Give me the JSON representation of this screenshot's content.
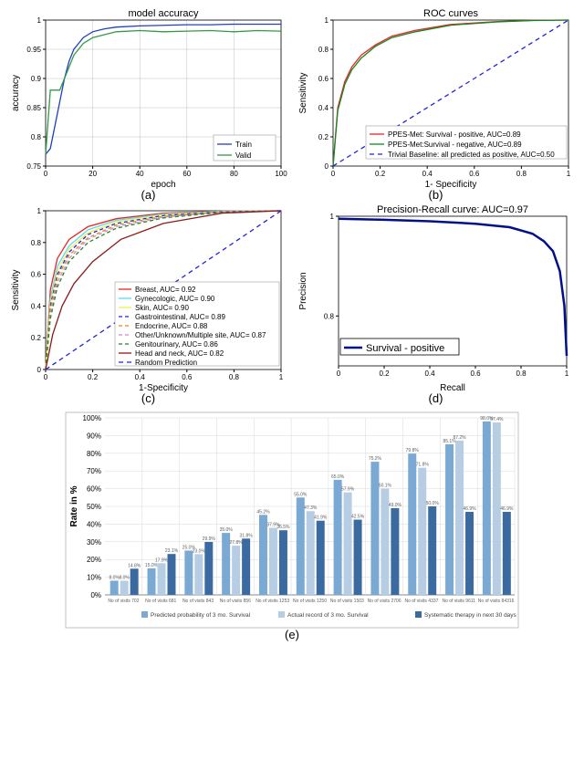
{
  "panel_a": {
    "title": "model accuracy",
    "xlabel": "epoch",
    "ylabel": "accuracy",
    "xlim": [
      0,
      100
    ],
    "xticks": [
      0,
      20,
      40,
      60,
      80,
      100
    ],
    "ylim": [
      0.75,
      1.0
    ],
    "yticks": [
      0.75,
      0.8,
      0.85,
      0.9,
      0.95,
      1.0
    ],
    "grid_color": "#c0c0c0",
    "series": [
      {
        "name": "Train",
        "color": "#1f3fbf",
        "x": [
          0,
          2,
          4,
          6,
          8,
          10,
          12,
          14,
          16,
          18,
          20,
          25,
          30,
          40,
          50,
          60,
          70,
          80,
          90,
          100
        ],
        "y": [
          0.77,
          0.78,
          0.82,
          0.86,
          0.9,
          0.93,
          0.95,
          0.96,
          0.97,
          0.975,
          0.98,
          0.985,
          0.988,
          0.99,
          0.991,
          0.992,
          0.992,
          0.993,
          0.993,
          0.993
        ]
      },
      {
        "name": "Valid",
        "color": "#339944",
        "x": [
          0,
          2,
          4,
          6,
          8,
          10,
          12,
          14,
          16,
          18,
          20,
          25,
          30,
          40,
          50,
          60,
          70,
          80,
          90,
          100
        ],
        "y": [
          0.77,
          0.88,
          0.88,
          0.88,
          0.9,
          0.92,
          0.94,
          0.95,
          0.96,
          0.965,
          0.97,
          0.975,
          0.98,
          0.982,
          0.98,
          0.981,
          0.982,
          0.98,
          0.982,
          0.981
        ]
      }
    ],
    "legend": [
      "Train",
      "Valid"
    ]
  },
  "panel_b": {
    "title": "ROC curves",
    "xlabel": "1- Specificity",
    "ylabel": "Sensitivity",
    "xlim": [
      0,
      1
    ],
    "xticks": [
      0.0,
      0.2,
      0.4,
      0.6,
      0.8,
      1.0
    ],
    "ylim": [
      0,
      1
    ],
    "yticks": [
      0.0,
      0.2,
      0.4,
      0.6,
      0.8,
      1.0
    ],
    "series": [
      {
        "name": "PPES-Met: Survival - positive, AUC=0.89",
        "color": "#ee2222",
        "dash": "",
        "x": [
          0,
          0.02,
          0.05,
          0.08,
          0.12,
          0.18,
          0.25,
          0.35,
          0.5,
          0.7,
          0.85,
          1.0
        ],
        "y": [
          0,
          0.4,
          0.58,
          0.68,
          0.76,
          0.83,
          0.89,
          0.93,
          0.97,
          0.99,
          0.998,
          1.0
        ]
      },
      {
        "name": "PPES-Met:Survival - negative, AUC=0.89",
        "color": "#118822",
        "dash": "",
        "x": [
          0,
          0.02,
          0.05,
          0.08,
          0.12,
          0.18,
          0.25,
          0.35,
          0.5,
          0.7,
          0.85,
          1.0
        ],
        "y": [
          0,
          0.38,
          0.56,
          0.66,
          0.74,
          0.82,
          0.88,
          0.92,
          0.965,
          0.988,
          0.997,
          1.0
        ]
      },
      {
        "name": "Trivial Baseline: all predicted as positive, AUC=0.50",
        "color": "#2222dd",
        "dash": "5,4",
        "x": [
          0,
          1
        ],
        "y": [
          0,
          1
        ]
      }
    ]
  },
  "panel_c": {
    "xlabel": "1-Specificity",
    "ylabel": "Sensitivity",
    "xlim": [
      0,
      1
    ],
    "xticks": [
      0.0,
      0.2,
      0.4,
      0.6,
      0.8,
      1.0
    ],
    "ylim": [
      0,
      1
    ],
    "yticks": [
      0.0,
      0.2,
      0.4,
      0.6,
      0.8,
      1.0
    ],
    "baseline": {
      "color": "#2222dd",
      "dash": "5,4"
    },
    "series": [
      {
        "name": "Breast, AUC= 0.92",
        "color": "#ee2222",
        "dash": "",
        "x": [
          0,
          0.02,
          0.05,
          0.1,
          0.18,
          0.3,
          0.5,
          0.75,
          1.0
        ],
        "y": [
          0,
          0.5,
          0.7,
          0.82,
          0.9,
          0.95,
          0.985,
          0.998,
          1.0
        ]
      },
      {
        "name": "Gynecologic, AUC= 0.90",
        "color": "#55ddee",
        "dash": "",
        "x": [
          0,
          0.02,
          0.05,
          0.1,
          0.18,
          0.3,
          0.5,
          0.75,
          1.0
        ],
        "y": [
          0,
          0.45,
          0.65,
          0.78,
          0.88,
          0.94,
          0.98,
          0.997,
          1.0
        ]
      },
      {
        "name": "Skin, AUC= 0.90",
        "color": "#eeee55",
        "dash": "",
        "x": [
          0,
          0.02,
          0.05,
          0.1,
          0.18,
          0.3,
          0.5,
          0.75,
          1.0
        ],
        "y": [
          0,
          0.42,
          0.62,
          0.76,
          0.86,
          0.93,
          0.975,
          0.995,
          1.0
        ]
      },
      {
        "name": "Gastrointestinal, AUC= 0.89",
        "color": "#2222dd",
        "dash": "4,3",
        "x": [
          0,
          0.02,
          0.05,
          0.1,
          0.18,
          0.3,
          0.5,
          0.75,
          1.0
        ],
        "y": [
          0,
          0.4,
          0.6,
          0.74,
          0.85,
          0.92,
          0.97,
          0.994,
          1.0
        ]
      },
      {
        "name": "Endocrine, AUC= 0.88",
        "color": "#dd8822",
        "dash": "4,3",
        "x": [
          0,
          0.02,
          0.05,
          0.1,
          0.18,
          0.3,
          0.5,
          0.75,
          1.0
        ],
        "y": [
          0,
          0.38,
          0.58,
          0.72,
          0.83,
          0.91,
          0.965,
          0.993,
          1.0
        ]
      },
      {
        "name": "Other/Unknown/Multiple site, AUC= 0.87",
        "color": "#cc88cc",
        "dash": "4,3",
        "x": [
          0,
          0.02,
          0.05,
          0.1,
          0.18,
          0.3,
          0.5,
          0.75,
          1.0
        ],
        "y": [
          0,
          0.35,
          0.55,
          0.7,
          0.82,
          0.9,
          0.96,
          0.992,
          1.0
        ]
      },
      {
        "name": "Genitourinary, AUC= 0.86",
        "color": "#228822",
        "dash": "4,3",
        "x": [
          0,
          0.02,
          0.05,
          0.1,
          0.18,
          0.3,
          0.5,
          0.75,
          1.0
        ],
        "y": [
          0,
          0.32,
          0.52,
          0.68,
          0.8,
          0.89,
          0.955,
          0.99,
          1.0
        ]
      },
      {
        "name": "Head and neck, AUC= 0.82",
        "color": "#8b1a1a",
        "dash": "",
        "x": [
          0,
          0.03,
          0.07,
          0.12,
          0.2,
          0.32,
          0.5,
          0.75,
          1.0
        ],
        "y": [
          0,
          0.22,
          0.4,
          0.54,
          0.68,
          0.82,
          0.92,
          0.985,
          1.0
        ]
      },
      {
        "name": "Random Prediction",
        "color": "#2222dd",
        "dash": "5,4",
        "x": [
          0,
          1
        ],
        "y": [
          0,
          1
        ]
      }
    ]
  },
  "panel_d": {
    "title": "Precision-Recall curve: AUC=0.97",
    "xlabel": "Recall",
    "ylabel": "Precision",
    "xlim": [
      0,
      1
    ],
    "xticks": [
      0.0,
      0.2,
      0.4,
      0.6,
      0.8,
      1.0
    ],
    "ylim": [
      0.7,
      1.0
    ],
    "yticks": [
      0.8,
      1.0
    ],
    "series": [
      {
        "name": "Survival - positive",
        "color": "#001088",
        "width": 2.5,
        "x": [
          0,
          0.2,
          0.4,
          0.6,
          0.75,
          0.85,
          0.9,
          0.94,
          0.97,
          0.99,
          1.0
        ],
        "y": [
          0.995,
          0.993,
          0.99,
          0.985,
          0.978,
          0.965,
          0.95,
          0.93,
          0.89,
          0.82,
          0.72
        ]
      }
    ]
  },
  "panel_e": {
    "ylabel": "Rate in %",
    "ylim": [
      0,
      100
    ],
    "yticks": [
      0,
      10,
      20,
      30,
      40,
      50,
      60,
      70,
      80,
      90,
      100
    ],
    "grid_color": "#d8d8d8",
    "bar_colors": [
      "#7aa9d4",
      "#b7cde4",
      "#3b6aa0"
    ],
    "legend": [
      "Predicted probability of 3 mo. Survival",
      "Actual record of 3 mo. Survival",
      "Systematic therapy in next 30 days"
    ],
    "groups": [
      {
        "label": "No of visits 702",
        "vals": [
          8.0,
          8.0,
          14.8
        ]
      },
      {
        "label": "No of visits 681",
        "vals": [
          15.0,
          17.9,
          23.1
        ]
      },
      {
        "label": "No of visits 843",
        "vals": [
          25.0,
          23.0,
          29.9
        ]
      },
      {
        "label": "No of visits 856",
        "vals": [
          35.0,
          27.8,
          31.8
        ]
      },
      {
        "label": "No of visits 1253",
        "vals": [
          45.2,
          37.9,
          36.5
        ]
      },
      {
        "label": "No of visits 1250",
        "vals": [
          55.0,
          47.3,
          41.9
        ]
      },
      {
        "label": "No of visits 1503",
        "vals": [
          65.0,
          57.9,
          42.5
        ]
      },
      {
        "label": "No of visits 2706",
        "vals": [
          75.2,
          60.1,
          49.0
        ]
      },
      {
        "label": "No of visits 4337",
        "vals": [
          79.8,
          71.8,
          50.0
        ]
      },
      {
        "label": "No of visits 9611",
        "vals": [
          85.1,
          87.2,
          46.9
        ]
      },
      {
        "label": "No of visits 84316",
        "vals": [
          98.0,
          97.4,
          46.9
        ]
      }
    ]
  },
  "labels": {
    "a": "(a)",
    "b": "(b)",
    "c": "(c)",
    "d": "(d)",
    "e": "(e)"
  }
}
